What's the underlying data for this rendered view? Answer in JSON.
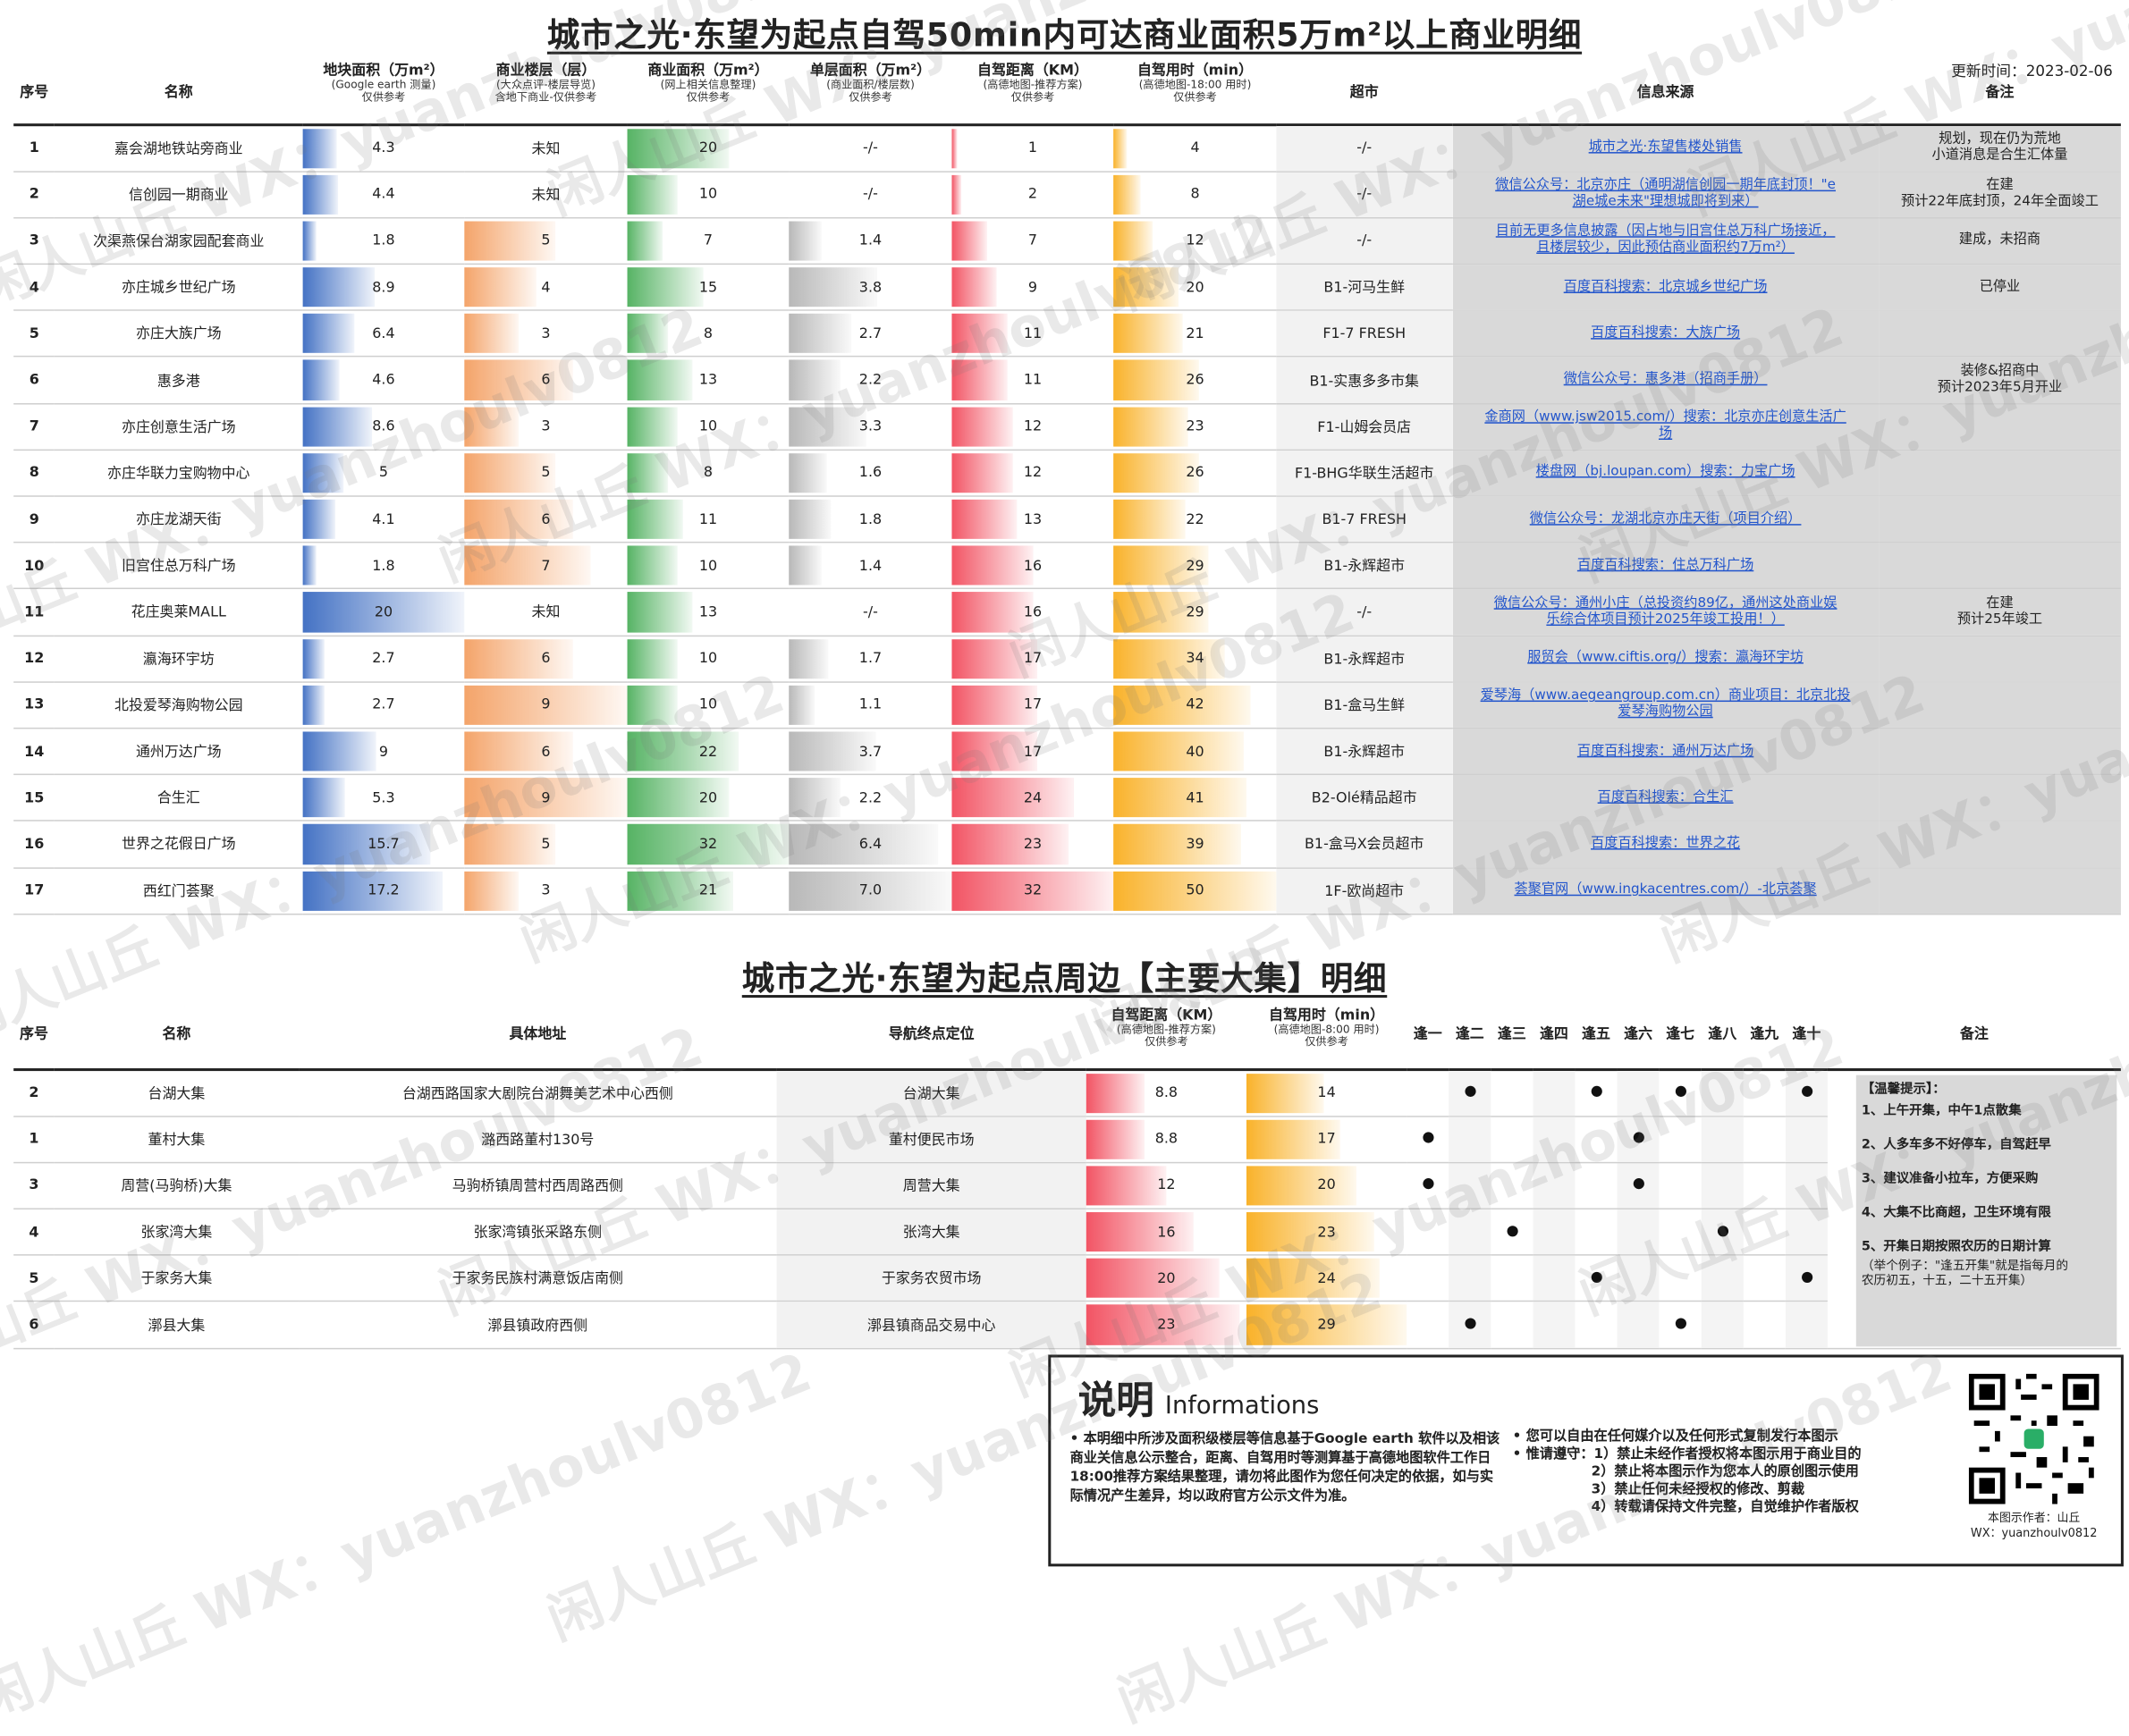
{
  "title1": "城市之光·东望为起点自驾50min内可达商业面积5万m²以上商业明细",
  "updated": "更新时间：2023-02-06",
  "headers1": {
    "seq": "序号",
    "name": "名称",
    "land": "地块面积（万m²）",
    "land_sub1": "(Google earth 测量)",
    "land_sub2": "仅供参考",
    "floors": "商业楼层（层）",
    "floors_sub1": "(大众点评-楼层导览)",
    "floors_sub2": "含地下商业-仅供参考",
    "area": "商业面积（万m²）",
    "area_sub1": "(网上相关信息整理)",
    "area_sub2": "仅供参考",
    "floorarea": "单层面积（万m²）",
    "floorarea_sub1": "(商业面积/楼层数)",
    "floorarea_sub2": "仅供参考",
    "dist": "自驾距离（KM）",
    "dist_sub1": "(高德地图-推荐方案)",
    "dist_sub2": "仅供参考",
    "time": "自驾用时（min）",
    "time_sub1": "(高德地图-18:00 用时)",
    "time_sub2": "仅供参考",
    "market": "超市",
    "source": "信息来源",
    "remark": "备注"
  },
  "rows1": [
    {
      "seq": "1",
      "name": "嘉会湖地铁站旁商业",
      "land": "4.3",
      "land_v": 4.3,
      "floors": "未知",
      "floors_v": 0,
      "area": "20",
      "area_v": 20,
      "fa": "-/-",
      "fa_v": 0,
      "dist": "1",
      "dist_v": 1,
      "time": "4",
      "time_v": 4,
      "market": "-/-",
      "source": [
        "城市之光·东望售楼处销售"
      ],
      "remark": [
        "规划，现在仍为荒地",
        "小道消息是合生汇体量"
      ]
    },
    {
      "seq": "2",
      "name": "信创园一期商业",
      "land": "4.4",
      "land_v": 4.4,
      "floors": "未知",
      "floors_v": 0,
      "area": "10",
      "area_v": 10,
      "fa": "-/-",
      "fa_v": 0,
      "dist": "2",
      "dist_v": 2,
      "time": "8",
      "time_v": 8,
      "market": "-/-",
      "source": [
        "微信公众号：北京亦庄（通明湖信创园一期年底封顶！\"e",
        "湖e城e未来\"理想城即将到来）"
      ],
      "remark": [
        "在建",
        "预计22年底封顶，24年全面竣工"
      ]
    },
    {
      "seq": "3",
      "name": "次渠燕保台湖家园配套商业",
      "land": "1.8",
      "land_v": 1.8,
      "floors": "5",
      "floors_v": 5,
      "area": "7",
      "area_v": 7,
      "fa": "1.4",
      "fa_v": 1.4,
      "dist": "7",
      "dist_v": 7,
      "time": "12",
      "time_v": 12,
      "market": "-/-",
      "source": [
        "目前无更多信息披露（因占地与旧宫住总万科广场接近，",
        "且楼层较少，因此预估商业面积约7万m²）"
      ],
      "remark": [
        "建成，未招商"
      ]
    },
    {
      "seq": "4",
      "name": "亦庄城乡世纪广场",
      "land": "8.9",
      "land_v": 8.9,
      "floors": "4",
      "floors_v": 4,
      "area": "15",
      "area_v": 15,
      "fa": "3.8",
      "fa_v": 3.8,
      "dist": "9",
      "dist_v": 9,
      "time": "20",
      "time_v": 20,
      "market": "B1-河马生鲜",
      "source": [
        "百度百科搜索：北京城乡世纪广场"
      ],
      "remark": [
        "已停业"
      ]
    },
    {
      "seq": "5",
      "name": "亦庄大族广场",
      "land": "6.4",
      "land_v": 6.4,
      "floors": "3",
      "floors_v": 3,
      "area": "8",
      "area_v": 8,
      "fa": "2.7",
      "fa_v": 2.7,
      "dist": "11",
      "dist_v": 11,
      "time": "21",
      "time_v": 21,
      "market": "F1-7 FRESH",
      "source": [
        "百度百科搜索：大族广场"
      ],
      "remark": []
    },
    {
      "seq": "6",
      "name": "惠多港",
      "land": "4.6",
      "land_v": 4.6,
      "floors": "6",
      "floors_v": 6,
      "area": "13",
      "area_v": 13,
      "fa": "2.2",
      "fa_v": 2.2,
      "dist": "11",
      "dist_v": 11,
      "time": "26",
      "time_v": 26,
      "market": "B1-实惠多多市集",
      "source": [
        "微信公众号：惠多港（招商手册）"
      ],
      "remark": [
        "装修&招商中",
        "预计2023年5月开业"
      ]
    },
    {
      "seq": "7",
      "name": "亦庄创意生活广场",
      "land": "8.6",
      "land_v": 8.6,
      "floors": "3",
      "floors_v": 3,
      "area": "10",
      "area_v": 10,
      "fa": "3.3",
      "fa_v": 3.3,
      "dist": "12",
      "dist_v": 12,
      "time": "23",
      "time_v": 23,
      "market": "F1-山姆会员店",
      "source": [
        "金商网（www.jsw2015.com/）搜索：北京亦庄创意生活广",
        "场"
      ],
      "remark": []
    },
    {
      "seq": "8",
      "name": "亦庄华联力宝购物中心",
      "land": "5",
      "land_v": 5,
      "floors": "5",
      "floors_v": 5,
      "area": "8",
      "area_v": 8,
      "fa": "1.6",
      "fa_v": 1.6,
      "dist": "12",
      "dist_v": 12,
      "time": "26",
      "time_v": 26,
      "market": "F1-BHG华联生活超市",
      "source": [
        "楼盘网（bj.loupan.com）搜索：力宝广场"
      ],
      "remark": []
    },
    {
      "seq": "9",
      "name": "亦庄龙湖天街",
      "land": "4.1",
      "land_v": 4.1,
      "floors": "6",
      "floors_v": 6,
      "area": "11",
      "area_v": 11,
      "fa": "1.8",
      "fa_v": 1.8,
      "dist": "13",
      "dist_v": 13,
      "time": "22",
      "time_v": 22,
      "market": "B1-7 FRESH",
      "source": [
        "微信公众号：龙湖北京亦庄天街（项目介绍）"
      ],
      "remark": []
    },
    {
      "seq": "10",
      "name": "旧宫住总万科广场",
      "land": "1.8",
      "land_v": 1.8,
      "floors": "7",
      "floors_v": 7,
      "area": "10",
      "area_v": 10,
      "fa": "1.4",
      "fa_v": 1.4,
      "dist": "16",
      "dist_v": 16,
      "time": "29",
      "time_v": 29,
      "market": "B1-永辉超市",
      "source": [
        "百度百科搜索：住总万科广场"
      ],
      "remark": []
    },
    {
      "seq": "11",
      "name": "花庄奥莱MALL",
      "land": "20",
      "land_v": 20,
      "floors": "未知",
      "floors_v": 0,
      "area": "13",
      "area_v": 13,
      "fa": "-/-",
      "fa_v": 0,
      "dist": "16",
      "dist_v": 16,
      "time": "29",
      "time_v": 29,
      "market": "-/-",
      "source": [
        "微信公众号：通州小庄（总投资约89亿，通州这处商业娱",
        "乐综合体项目预计2025年竣工投用！）"
      ],
      "remark": [
        "在建",
        "预计25年竣工"
      ]
    },
    {
      "seq": "12",
      "name": "瀛海环宇坊",
      "land": "2.7",
      "land_v": 2.7,
      "floors": "6",
      "floors_v": 6,
      "area": "10",
      "area_v": 10,
      "fa": "1.7",
      "fa_v": 1.7,
      "dist": "17",
      "dist_v": 17,
      "time": "34",
      "time_v": 34,
      "market": "B1-永辉超市",
      "source": [
        "服贸会（www.ciftis.org/）搜索：瀛海环宇坊"
      ],
      "remark": []
    },
    {
      "seq": "13",
      "name": "北投爱琴海购物公园",
      "land": "2.7",
      "land_v": 2.7,
      "floors": "9",
      "floors_v": 9,
      "area": "10",
      "area_v": 10,
      "fa": "1.1",
      "fa_v": 1.1,
      "dist": "17",
      "dist_v": 17,
      "time": "42",
      "time_v": 42,
      "market": "B1-盒马生鲜",
      "source": [
        "爱琴海（www.aegeangroup.com.cn）商业项目：北京北投",
        "爱琴海购物公园"
      ],
      "remark": []
    },
    {
      "seq": "14",
      "name": "通州万达广场",
      "land": "9",
      "land_v": 9,
      "floors": "6",
      "floors_v": 6,
      "area": "22",
      "area_v": 22,
      "fa": "3.7",
      "fa_v": 3.7,
      "dist": "17",
      "dist_v": 17,
      "time": "40",
      "time_v": 40,
      "market": "B1-永辉超市",
      "source": [
        "百度百科搜索：通州万达广场"
      ],
      "remark": []
    },
    {
      "seq": "15",
      "name": "合生汇",
      "land": "5.3",
      "land_v": 5.3,
      "floors": "9",
      "floors_v": 9,
      "area": "20",
      "area_v": 20,
      "fa": "2.2",
      "fa_v": 2.2,
      "dist": "24",
      "dist_v": 24,
      "time": "41",
      "time_v": 41,
      "market": "B2-Olé精品超市",
      "source": [
        "百度百科搜索：合生汇"
      ],
      "remark": []
    },
    {
      "seq": "16",
      "name": "世界之花假日广场",
      "land": "15.7",
      "land_v": 15.7,
      "floors": "5",
      "floors_v": 5,
      "area": "32",
      "area_v": 32,
      "fa": "6.4",
      "fa_v": 6.4,
      "dist": "23",
      "dist_v": 23,
      "time": "39",
      "time_v": 39,
      "market": "B1-盒马X会员超市",
      "source": [
        "百度百科搜索：世界之花"
      ],
      "remark": []
    },
    {
      "seq": "17",
      "name": "西红门荟聚",
      "land": "17.2",
      "land_v": 17.2,
      "floors": "3",
      "floors_v": 3,
      "area": "21",
      "area_v": 21,
      "fa": "7.0",
      "fa_v": 7.0,
      "dist": "32",
      "dist_v": 32,
      "time": "50",
      "time_v": 50,
      "market": "1F-欧尚超市",
      "source": [
        "荟聚官网（www.ingkacentres.com/）-北京荟聚"
      ],
      "remark": []
    }
  ],
  "title2": "城市之光·东望为起点周边【主要大集】明细",
  "headers2": {
    "seq": "序号",
    "name": "名称",
    "addr": "具体地址",
    "nav": "导航终点定位",
    "dist": "自驾距离（KM）",
    "dist_sub1": "(高德地图-推荐方案)",
    "dist_sub2": "仅供参考",
    "time": "自驾用时（min）",
    "time_sub1": "(高德地图-8:00 用时)",
    "time_sub2": "仅供参考",
    "days": [
      "逢一",
      "逢二",
      "逢三",
      "逢四",
      "逢五",
      "逢六",
      "逢七",
      "逢八",
      "逢九",
      "逢十"
    ],
    "remark": "备注"
  },
  "rows2": [
    {
      "seq": "2",
      "name": "台湖大集",
      "addr": "台湖西路国家大剧院台湖舞美艺术中心西侧",
      "nav": "台湖大集",
      "dist": "8.8",
      "dist_v": 8.8,
      "time": "14",
      "time_v": 14,
      "days": [
        0,
        1,
        0,
        0,
        1,
        0,
        1,
        0,
        0,
        1
      ]
    },
    {
      "seq": "1",
      "name": "董村大集",
      "addr": "潞西路董村130号",
      "nav": "董村便民市场",
      "dist": "8.8",
      "dist_v": 8.8,
      "time": "17",
      "time_v": 17,
      "days": [
        1,
        0,
        0,
        0,
        0,
        1,
        0,
        0,
        0,
        0
      ]
    },
    {
      "seq": "3",
      "name": "周营(马驹桥)大集",
      "addr": "马驹桥镇周营村西周路西侧",
      "nav": "周营大集",
      "dist": "12",
      "dist_v": 12,
      "time": "20",
      "time_v": 20,
      "days": [
        1,
        0,
        0,
        0,
        0,
        1,
        0,
        0,
        0,
        0
      ]
    },
    {
      "seq": "4",
      "name": "张家湾大集",
      "addr": "张家湾镇张采路东侧",
      "nav": "张湾大集",
      "dist": "16",
      "dist_v": 16,
      "time": "23",
      "time_v": 23,
      "days": [
        0,
        0,
        1,
        0,
        0,
        0,
        0,
        1,
        0,
        0
      ]
    },
    {
      "seq": "5",
      "name": "于家务大集",
      "addr": "于家务民族村满意饭店南侧",
      "nav": "于家务农贸市场",
      "dist": "20",
      "dist_v": 20,
      "time": "24",
      "time_v": 24,
      "days": [
        0,
        0,
        0,
        0,
        1,
        0,
        0,
        0,
        0,
        1
      ]
    },
    {
      "seq": "6",
      "name": "漷县大集",
      "addr": "漷县镇政府西侧",
      "nav": "漷县镇商品交易中心",
      "dist": "23",
      "dist_v": 23,
      "time": "29",
      "time_v": 29,
      "days": [
        0,
        1,
        0,
        0,
        0,
        0,
        1,
        0,
        0,
        0
      ]
    }
  ],
  "tips": {
    "head": "【温馨提示】：",
    "t1": "1、上午开集，中午1点散集",
    "t2": "2、人多车多不好停车，自驾赶早",
    "t3": "3、建议准备小拉车，方便采购",
    "t4": "4、大集不比商超，卫生环境有限",
    "t5": "5、开集日期按照农历的日期计算",
    "t5a": "（举个例子：\"逢五开集\"就是指每月的",
    "t5b": "农历初五，十五，二十五开集）"
  },
  "info": {
    "h": "说明",
    "h_en": "Informations",
    "left": "• 本明细中所涉及面积级楼层等信息基于Google earth 软件以及相该商业关信息公示整合，距离、自驾用时等测算基于高德地图软件工作日18:00推荐方案结果整理，请勿将此图作为您任何决定的依据，如与实际情况产生差异，均以政府官方公示文件为准。",
    "r1": "• 您可以自由在任何媒介以及任何形式复制发行本图示",
    "r2": "• 惟请遵守：1）禁止未经作者授权将本图示用于商业目的",
    "r3": "2）禁止将本图示作为您本人的原创图示使用",
    "r4": "3）禁止任何未经授权的修改、剪裁",
    "r5": "4）转载请保持文件完整，自觉维护作者版权",
    "cap1": "本图示作者：山丘",
    "cap2": "WX：yuanzhoulv0812"
  },
  "watermark": "闲人山丘 WX：yuanzhoulv0812"
}
